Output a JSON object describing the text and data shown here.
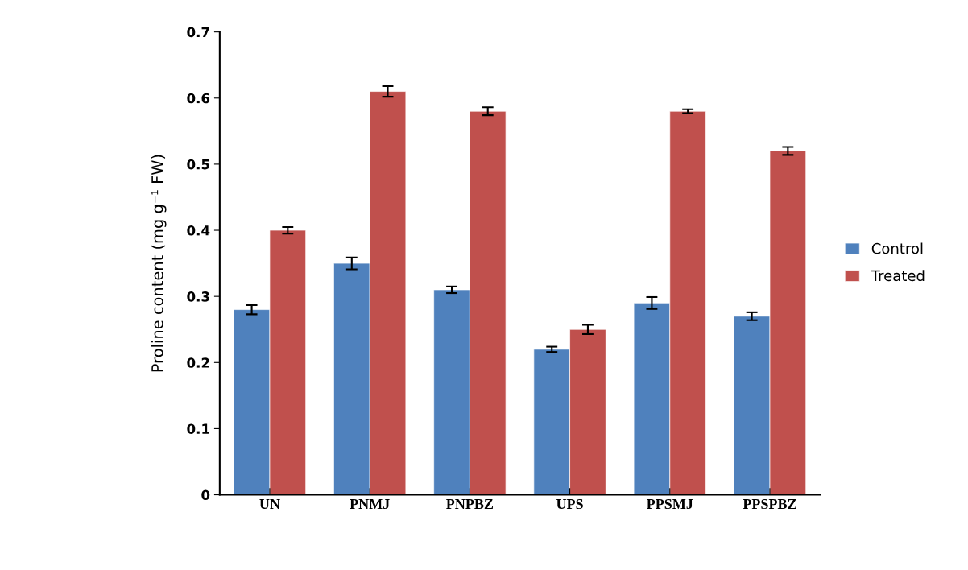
{
  "chart_data": {
    "type": "bar",
    "ylabel": "Proline content (mg g⁻¹ FW)",
    "categories": [
      "UN",
      "PNMJ",
      "PNPBZ",
      "UPS",
      "PPSMJ",
      "PPSPBZ"
    ],
    "series": [
      {
        "name": "Control",
        "color": "#4f81bd",
        "values": [
          0.28,
          0.35,
          0.31,
          0.22,
          0.29,
          0.27
        ],
        "errors": [
          0.007,
          0.009,
          0.005,
          0.004,
          0.009,
          0.006
        ]
      },
      {
        "name": "Treated",
        "color": "#c0504d",
        "values": [
          0.4,
          0.61,
          0.58,
          0.25,
          0.58,
          0.52
        ],
        "errors": [
          0.005,
          0.008,
          0.006,
          0.007,
          0.003,
          0.006
        ]
      }
    ],
    "ylim": [
      0,
      0.7
    ],
    "yticks": [
      0,
      0.1,
      0.2,
      0.3,
      0.4,
      0.5,
      0.6,
      0.7
    ],
    "grid": false,
    "legend": "right"
  }
}
